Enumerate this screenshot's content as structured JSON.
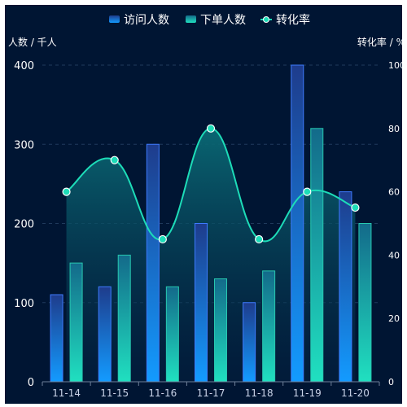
{
  "colors": {
    "background": "#001533",
    "visit_bar_top": "#1E3C8C",
    "visit_bar_bottom": "#139BFF",
    "visit_bar_stroke": "#3E7BFF",
    "order_bar_top": "#136A8A",
    "order_bar_bottom": "#20E0C0",
    "order_bar_stroke": "#27C8B0",
    "line": "#1DDCB8",
    "area_top": "#0A6A75",
    "area_bottom": "#052646",
    "text": "#FFFFFF",
    "tick_text": "#C9D3E8",
    "grid": "#1F3A5C"
  },
  "legend": [
    {
      "label": "访问人数",
      "icon": "bar-swatch-icon"
    },
    {
      "label": "下单人数",
      "icon": "bar-swatch-icon"
    },
    {
      "label": "转化率",
      "icon": "line-marker-icon"
    }
  ],
  "chart_data": {
    "type": "bar",
    "title": "",
    "xlabel": "",
    "ylabel": "人数 / 千人",
    "y2label": "转化率 / %",
    "categories": [
      "11-14",
      "11-15",
      "11-16",
      "11-17",
      "11-18",
      "11-19",
      "11-20"
    ],
    "ylim": [
      0,
      400
    ],
    "yticks": [
      "0",
      "100",
      "200",
      "300",
      "400"
    ],
    "y2lim": [
      0,
      100
    ],
    "y2ticks": [
      "0",
      "20",
      "40",
      "60",
      "80",
      "100"
    ],
    "grid": true,
    "legend_position": "top-center",
    "series": [
      {
        "name": "访问人数",
        "type": "bar",
        "axis": "left",
        "values": [
          110,
          120,
          300,
          200,
          100,
          400,
          240
        ]
      },
      {
        "name": "下单人数",
        "type": "bar",
        "axis": "left",
        "values": [
          150,
          160,
          120,
          130,
          140,
          320,
          200
        ]
      },
      {
        "name": "转化率",
        "type": "line",
        "axis": "right",
        "smooth": true,
        "area": true,
        "values": [
          60,
          70,
          45,
          80,
          45,
          60,
          55
        ]
      }
    ]
  }
}
